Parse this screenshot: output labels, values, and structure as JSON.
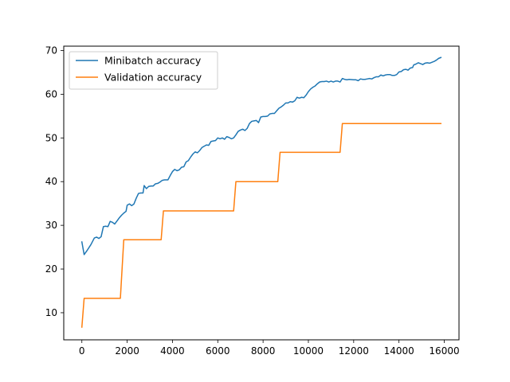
{
  "chart_data": {
    "type": "line",
    "title": "",
    "xlabel": "",
    "ylabel": "",
    "xlim": [
      -800,
      16650
    ],
    "ylim": [
      3.8,
      71.0
    ],
    "xticks": [
      0,
      2000,
      4000,
      6000,
      8000,
      10000,
      12000,
      14000,
      16000
    ],
    "yticks": [
      10,
      20,
      30,
      40,
      50,
      60,
      70
    ],
    "legend_position": "top-left",
    "grid": false,
    "series": [
      {
        "name": "Minibatch accuracy",
        "color": "#1f77b4",
        "points": [
          [
            0,
            26.2
          ],
          [
            100,
            23.3
          ],
          [
            250,
            24.4
          ],
          [
            400,
            25.6
          ],
          [
            550,
            27.1
          ],
          [
            650,
            27.3
          ],
          [
            750,
            27.0
          ],
          [
            850,
            27.4
          ],
          [
            950,
            29.7
          ],
          [
            1050,
            29.8
          ],
          [
            1150,
            29.7
          ],
          [
            1250,
            30.9
          ],
          [
            1350,
            30.7
          ],
          [
            1450,
            30.3
          ],
          [
            1550,
            31.0
          ],
          [
            1650,
            31.7
          ],
          [
            1750,
            32.3
          ],
          [
            1850,
            32.8
          ],
          [
            1950,
            33.2
          ],
          [
            2000,
            34.6
          ],
          [
            2100,
            34.9
          ],
          [
            2200,
            34.5
          ],
          [
            2300,
            34.9
          ],
          [
            2400,
            36.2
          ],
          [
            2500,
            37.3
          ],
          [
            2600,
            37.4
          ],
          [
            2700,
            37.4
          ],
          [
            2750,
            39.1
          ],
          [
            2850,
            38.4
          ],
          [
            2950,
            38.9
          ],
          [
            3050,
            39.0
          ],
          [
            3150,
            39.0
          ],
          [
            3250,
            39.5
          ],
          [
            3350,
            39.6
          ],
          [
            3450,
            39.9
          ],
          [
            3550,
            40.3
          ],
          [
            3650,
            40.4
          ],
          [
            3800,
            40.4
          ],
          [
            3900,
            41.4
          ],
          [
            4000,
            42.3
          ],
          [
            4100,
            42.8
          ],
          [
            4200,
            42.5
          ],
          [
            4300,
            42.7
          ],
          [
            4400,
            43.3
          ],
          [
            4500,
            43.4
          ],
          [
            4600,
            44.5
          ],
          [
            4700,
            44.8
          ],
          [
            4800,
            45.6
          ],
          [
            4900,
            46.3
          ],
          [
            5000,
            46.8
          ],
          [
            5100,
            46.6
          ],
          [
            5200,
            47.1
          ],
          [
            5300,
            47.8
          ],
          [
            5400,
            48.1
          ],
          [
            5500,
            48.4
          ],
          [
            5600,
            48.3
          ],
          [
            5700,
            49.2
          ],
          [
            5800,
            49.3
          ],
          [
            5900,
            49.4
          ],
          [
            6000,
            50.0
          ],
          [
            6100,
            49.8
          ],
          [
            6200,
            50.0
          ],
          [
            6300,
            49.7
          ],
          [
            6400,
            50.3
          ],
          [
            6500,
            50.1
          ],
          [
            6600,
            49.8
          ],
          [
            6700,
            50.0
          ],
          [
            6800,
            50.7
          ],
          [
            6900,
            51.5
          ],
          [
            7000,
            51.8
          ],
          [
            7100,
            52.0
          ],
          [
            7200,
            51.7
          ],
          [
            7300,
            52.2
          ],
          [
            7400,
            53.3
          ],
          [
            7500,
            53.8
          ],
          [
            7600,
            53.9
          ],
          [
            7700,
            54.0
          ],
          [
            7800,
            53.5
          ],
          [
            7900,
            54.8
          ],
          [
            8000,
            54.9
          ],
          [
            8100,
            54.9
          ],
          [
            8200,
            55.0
          ],
          [
            8300,
            55.5
          ],
          [
            8400,
            55.6
          ],
          [
            8500,
            55.6
          ],
          [
            8600,
            56.2
          ],
          [
            8700,
            56.8
          ],
          [
            8800,
            57.1
          ],
          [
            8900,
            57.5
          ],
          [
            9000,
            58.0
          ],
          [
            9100,
            58.0
          ],
          [
            9200,
            58.3
          ],
          [
            9300,
            58.2
          ],
          [
            9400,
            58.5
          ],
          [
            9500,
            59.3
          ],
          [
            9600,
            59.1
          ],
          [
            9700,
            59.3
          ],
          [
            9800,
            59.2
          ],
          [
            9900,
            59.8
          ],
          [
            10000,
            60.6
          ],
          [
            10100,
            61.2
          ],
          [
            10200,
            61.6
          ],
          [
            10300,
            61.9
          ],
          [
            10400,
            62.4
          ],
          [
            10500,
            62.8
          ],
          [
            10600,
            62.9
          ],
          [
            10700,
            62.9
          ],
          [
            10800,
            63.0
          ],
          [
            10900,
            62.8
          ],
          [
            11000,
            63.0
          ],
          [
            11100,
            62.8
          ],
          [
            11200,
            63.0
          ],
          [
            11300,
            63.0
          ],
          [
            11400,
            62.8
          ],
          [
            11500,
            63.6
          ],
          [
            11600,
            63.4
          ],
          [
            11700,
            63.3
          ],
          [
            11800,
            63.4
          ],
          [
            12000,
            63.3
          ],
          [
            12100,
            63.3
          ],
          [
            12200,
            63.1
          ],
          [
            12300,
            63.5
          ],
          [
            12400,
            63.4
          ],
          [
            12500,
            63.4
          ],
          [
            12600,
            63.5
          ],
          [
            12700,
            63.6
          ],
          [
            12800,
            63.5
          ],
          [
            12900,
            63.8
          ],
          [
            13000,
            64.0
          ],
          [
            13100,
            64.0
          ],
          [
            13200,
            64.4
          ],
          [
            13300,
            64.2
          ],
          [
            13400,
            64.4
          ],
          [
            13500,
            64.5
          ],
          [
            13600,
            64.5
          ],
          [
            13700,
            64.3
          ],
          [
            13800,
            64.3
          ],
          [
            13900,
            64.5
          ],
          [
            14000,
            65.1
          ],
          [
            14100,
            65.2
          ],
          [
            14200,
            65.6
          ],
          [
            14300,
            65.7
          ],
          [
            14400,
            65.5
          ],
          [
            14500,
            66.0
          ],
          [
            14600,
            66.1
          ],
          [
            14650,
            66.7
          ],
          [
            14750,
            66.9
          ],
          [
            14850,
            67.2
          ],
          [
            14950,
            67.0
          ],
          [
            15050,
            66.8
          ],
          [
            15150,
            67.1
          ],
          [
            15250,
            67.2
          ],
          [
            15350,
            67.1
          ],
          [
            15450,
            67.3
          ],
          [
            15550,
            67.5
          ],
          [
            15650,
            67.8
          ],
          [
            15750,
            68.2
          ],
          [
            15850,
            68.4
          ]
        ]
      },
      {
        "name": "Validation accuracy",
        "color": "#ff7f0e",
        "points": [
          [
            0,
            6.7
          ],
          [
            100,
            13.3
          ],
          [
            1700,
            13.3
          ],
          [
            1850,
            26.7
          ],
          [
            3500,
            26.7
          ],
          [
            3600,
            33.3
          ],
          [
            6700,
            33.3
          ],
          [
            6800,
            40.0
          ],
          [
            8650,
            40.0
          ],
          [
            8750,
            46.7
          ],
          [
            11400,
            46.7
          ],
          [
            11500,
            53.3
          ],
          [
            15850,
            53.3
          ]
        ]
      }
    ]
  }
}
